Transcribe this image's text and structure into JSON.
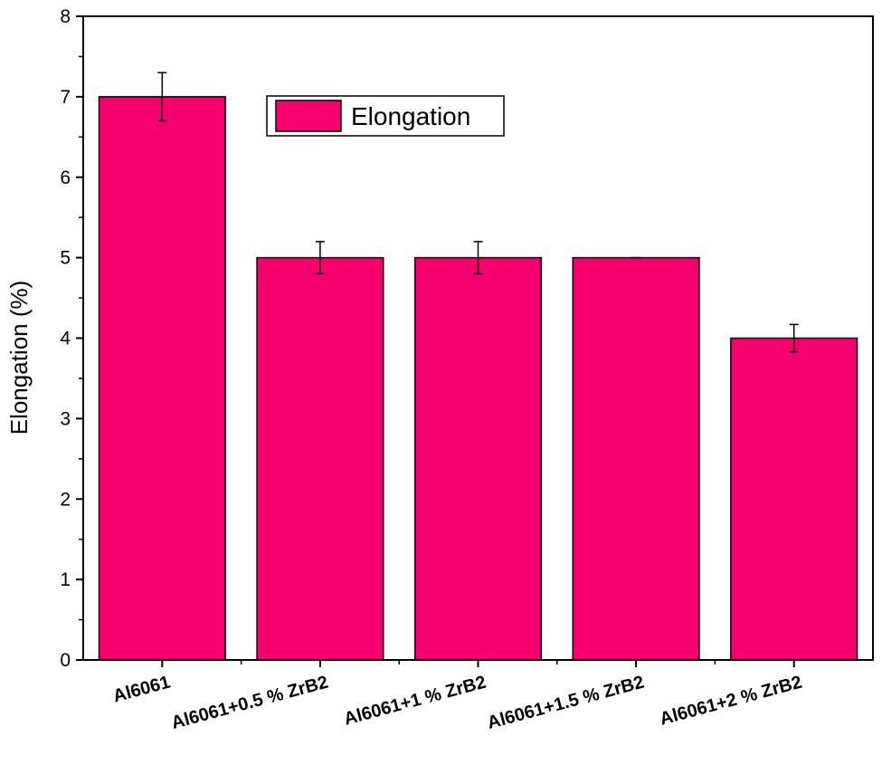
{
  "chart_data": {
    "type": "bar",
    "title": "",
    "xlabel": "",
    "ylabel": "Elongation (%)",
    "ylim": [
      0,
      8
    ],
    "yticks": [
      0,
      1,
      2,
      3,
      4,
      5,
      6,
      7,
      8
    ],
    "categories": [
      "Al6061",
      "Al6061+0.5 % ZrB2",
      "Al6061+1 % ZrB2",
      "Al6061+1.5 % ZrB2",
      "Al6061+2 % ZrB2"
    ],
    "series": [
      {
        "name": "Elongation",
        "values": [
          7,
          5,
          5,
          5,
          4
        ],
        "errors": [
          0.3,
          0.2,
          0.2,
          0.0,
          0.17
        ],
        "color": "#f5006e"
      }
    ],
    "legend_position": "top-center",
    "grid": false
  }
}
